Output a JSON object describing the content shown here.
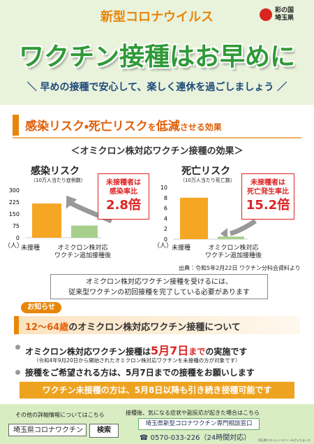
{
  "header": {
    "title": "新型コロナウイルス",
    "logo": "彩の国\n埼玉県",
    "headline": "ワクチン接種はお早めに",
    "subtitle": "＼ 早めの接種で安心して、楽しく連休を過ごしましょう ／"
  },
  "section1": {
    "heading": [
      "感染リスク・死亡リスク",
      "を",
      "低減",
      "させる効果"
    ],
    "caption": "＜オミクロン株対応ワクチン接種の効果＞",
    "source": "出典：令和5年2月22日 ワクチン分科会資料より",
    "note": "オミクロン株対応ワクチン接種を受けるには、\n従来型ワクチンの初回接種を完了している必要があります"
  },
  "chart_data": [
    {
      "type": "bar",
      "title": "感染リスク",
      "subtitle": "（10万人当たり症例数）",
      "unit_label": "（人）",
      "categories": [
        "未接種",
        "オミクロン株対応\nワクチン追加接種後"
      ],
      "values": [
        216,
        77
      ],
      "colors": [
        "#f5a623",
        "#a8d08d"
      ],
      "ylim": [
        0,
        300
      ],
      "yticks": [
        0,
        75,
        150,
        225,
        300
      ],
      "annotation": "未接種者は\n感染率比",
      "annotation_value": "2.8倍"
    },
    {
      "type": "bar",
      "title": "死亡リスク",
      "subtitle": "（10万人当たり死亡数）",
      "unit_label": "（人）",
      "categories": [
        "未接種",
        "オミクロン株対応\nワクチン追加接種後"
      ],
      "values": [
        8,
        0.5
      ],
      "colors": [
        "#f5a623",
        "#a8d08d"
      ],
      "ylim": [
        0,
        10
      ],
      "yticks": [
        0,
        2,
        4,
        6,
        8,
        10
      ],
      "annotation": "未接種者は\n死亡発生率比",
      "annotation_value": "15.2倍"
    }
  ],
  "notice": {
    "tag": "お知らせ",
    "heading": [
      "12～64歳",
      "のオミクロン株対応ワクチン接種について"
    ],
    "bullet1": [
      "オミクロン株対応ワクチン接種は",
      "5月7日",
      "まで",
      "の実施です"
    ],
    "bullet1_note": "（令和4年9月20日から開始されたオミクロン株対応ワクチンを未接種の方が対象です）",
    "bullet2": "接種をご希望される方は、5月7日までの接種をお願いします",
    "banner": "ワクチン未接種の方は、5月8日以降も引き続き接種可能です"
  },
  "footer": {
    "info": "その他の詳細情報についてはこちら",
    "search_text": "埼玉県コロナワクチン",
    "search_button": "検索",
    "consult_intro": "接種後、気になる症状や副反応が起きた場合はこちら",
    "consult_name": "埼玉県新型コロナワクチン専門相談窓口",
    "phone": "☎ 0570-033-226（24時間対応）",
    "mascot": "埼玉県マスコットコバトン&さいたまっち"
  }
}
